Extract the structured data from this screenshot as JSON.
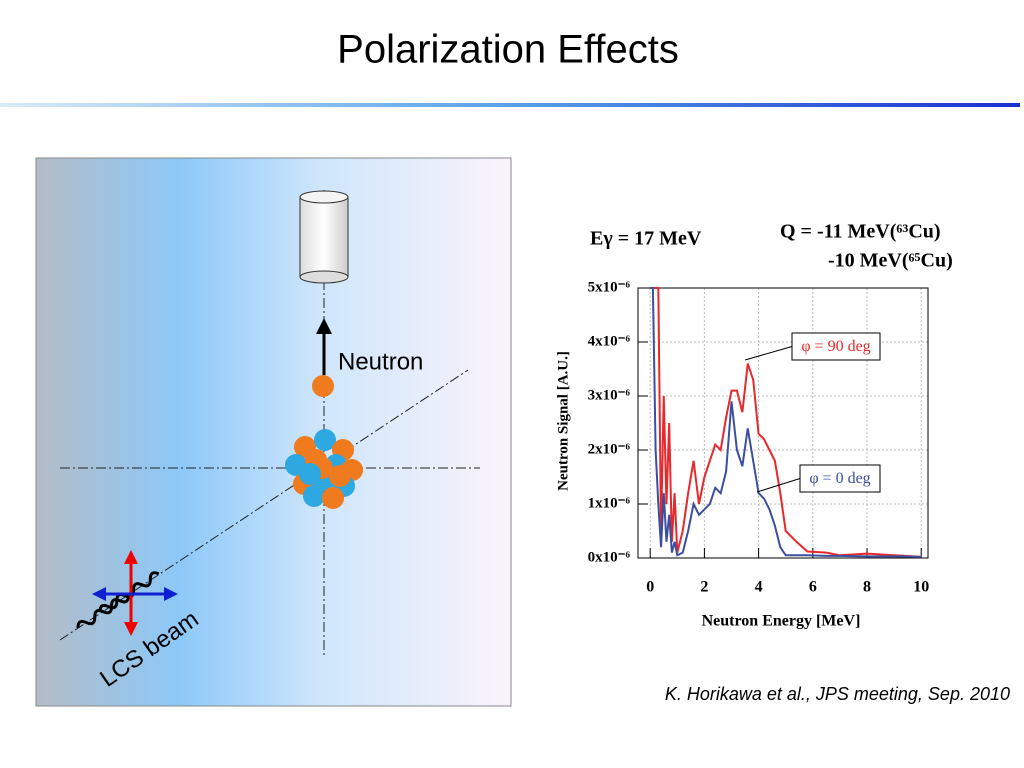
{
  "title": "Polarization Effects",
  "diagram": {
    "neutron_label": "Neutron",
    "beam_label": "LCS beam"
  },
  "citation": "K. Horikawa et al., JPS meeting, Sep. 2010",
  "chart_data": {
    "type": "line",
    "annotations": [
      "Eγ = 17 MeV",
      "Q = -11 MeV(⁶³Cu)",
      "-10 MeV(⁶⁵Cu)"
    ],
    "x_label": "Neutron Energy [MeV]",
    "y_label": "Neutron Signal [A.U.]",
    "x": [
      0,
      0.1,
      0.2,
      0.3,
      0.4,
      0.5,
      0.6,
      0.7,
      0.8,
      0.9,
      1.0,
      1.2,
      1.4,
      1.6,
      1.8,
      2.0,
      2.2,
      2.4,
      2.6,
      2.8,
      3.0,
      3.2,
      3.4,
      3.6,
      3.8,
      4.0,
      4.2,
      4.4,
      4.6,
      4.8,
      5.0,
      5.4,
      5.8,
      6.5,
      7,
      8,
      9,
      10
    ],
    "series": [
      {
        "name": "φ = 90 deg",
        "color": "#e8282b",
        "values": [
          5e-06,
          5e-06,
          5e-06,
          5e-06,
          5e-07,
          3e-06,
          1e-06,
          2.5e-06,
          3e-07,
          1.2e-06,
          1e-07,
          5e-07,
          1.2e-06,
          1.8e-06,
          1e-06,
          1.5e-06,
          1.8e-06,
          2.1e-06,
          2e-06,
          2.6e-06,
          3.1e-06,
          3.1e-06,
          2.7e-06,
          3.6e-06,
          3.3e-06,
          2.3e-06,
          2.2e-06,
          2e-06,
          1.8e-06,
          1.2e-06,
          5e-07,
          3e-07,
          1.2e-07,
          1e-07,
          5e-08,
          8e-08,
          5e-08,
          2e-08
        ]
      },
      {
        "name": "φ = 0 deg",
        "color": "#3b4fa0",
        "values": [
          5e-06,
          5e-06,
          2e-06,
          1e-06,
          2e-07,
          1.2e-06,
          3e-07,
          8e-07,
          1e-07,
          3e-07,
          5e-08,
          1e-07,
          5e-07,
          1e-06,
          8e-07,
          9e-07,
          1e-06,
          1.3e-06,
          1.2e-06,
          1.6e-06,
          2.9e-06,
          2e-06,
          1.7e-06,
          2.4e-06,
          1.8e-06,
          1.2e-06,
          1.1e-06,
          9e-07,
          6e-07,
          2e-07,
          5e-08,
          5e-08,
          5e-08,
          4e-08,
          4e-08,
          3e-08,
          3e-08,
          2e-08
        ]
      }
    ],
    "xlim": [
      -0.45,
      10.25
    ],
    "xticks": [
      0,
      2,
      4,
      6,
      8,
      10
    ],
    "ylim": [
      0,
      5e-06
    ],
    "yticks": [
      {
        "value": 0,
        "label": "0x10⁻⁶"
      },
      {
        "value": 1e-06,
        "label": "1x10⁻⁶"
      },
      {
        "value": 2e-06,
        "label": "2x10⁻⁶"
      },
      {
        "value": 3e-06,
        "label": "3x10⁻⁶"
      },
      {
        "value": 4e-06,
        "label": "4x10⁻⁶"
      },
      {
        "value": 5e-06,
        "label": "5x10⁻⁶"
      }
    ],
    "grid": true
  }
}
